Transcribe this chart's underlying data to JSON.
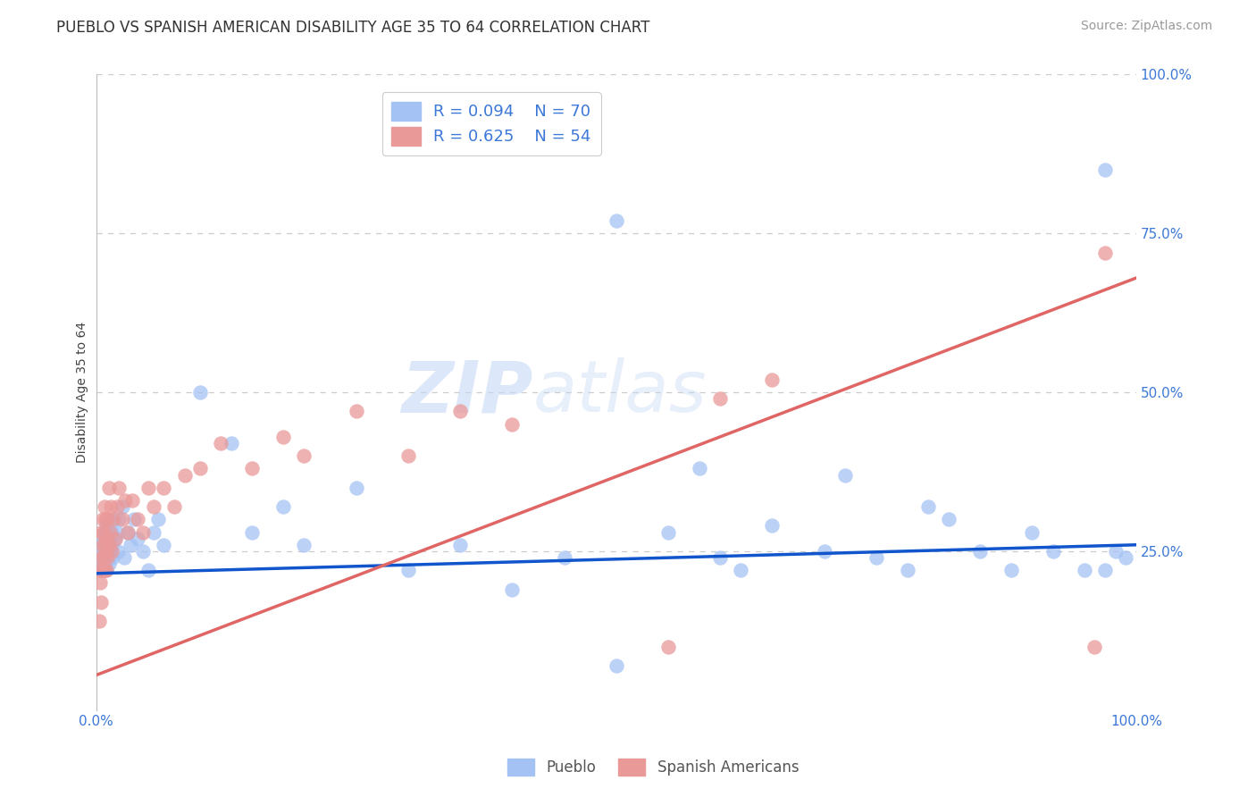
{
  "title": "PUEBLO VS SPANISH AMERICAN DISABILITY AGE 35 TO 64 CORRELATION CHART",
  "source": "Source: ZipAtlas.com",
  "ylabel": "Disability Age 35 to 64",
  "xlim": [
    0.0,
    1.0
  ],
  "ylim": [
    0.0,
    1.0
  ],
  "ytick_right_labels": [
    "100.0%",
    "75.0%",
    "50.0%",
    "25.0%"
  ],
  "ytick_right_values": [
    1.0,
    0.75,
    0.5,
    0.25
  ],
  "xtick_labels": [
    "0.0%",
    "100.0%"
  ],
  "xtick_values": [
    0.0,
    1.0
  ],
  "pueblo_R": 0.094,
  "pueblo_N": 70,
  "spanish_R": 0.625,
  "spanish_N": 54,
  "pueblo_color": "#a4c2f4",
  "spanish_color": "#ea9999",
  "pueblo_line_color": "#1155cc",
  "spanish_line_color": "#e06666",
  "watermark_zip": "ZIP",
  "watermark_atlas": "atlas",
  "watermark_color": "#c9d9f5",
  "background_color": "#ffffff",
  "pueblo_x": [
    0.005,
    0.005,
    0.005,
    0.007,
    0.007,
    0.008,
    0.008,
    0.009,
    0.009,
    0.01,
    0.01,
    0.01,
    0.011,
    0.011,
    0.012,
    0.012,
    0.013,
    0.013,
    0.014,
    0.015,
    0.015,
    0.016,
    0.017,
    0.018,
    0.02,
    0.021,
    0.022,
    0.025,
    0.027,
    0.03,
    0.033,
    0.036,
    0.04,
    0.045,
    0.05,
    0.055,
    0.06,
    0.065,
    0.1,
    0.13,
    0.15,
    0.18,
    0.2,
    0.25,
    0.3,
    0.35,
    0.4,
    0.45,
    0.5,
    0.55,
    0.58,
    0.6,
    0.62,
    0.65,
    0.7,
    0.72,
    0.75,
    0.78,
    0.8,
    0.82,
    0.85,
    0.88,
    0.9,
    0.92,
    0.95,
    0.97,
    0.98,
    0.99,
    0.5,
    0.97
  ],
  "pueblo_y": [
    0.22,
    0.24,
    0.26,
    0.23,
    0.27,
    0.25,
    0.28,
    0.24,
    0.26,
    0.22,
    0.27,
    0.29,
    0.25,
    0.28,
    0.23,
    0.26,
    0.24,
    0.27,
    0.25,
    0.26,
    0.28,
    0.24,
    0.3,
    0.27,
    0.28,
    0.25,
    0.3,
    0.32,
    0.24,
    0.28,
    0.26,
    0.3,
    0.27,
    0.25,
    0.22,
    0.28,
    0.3,
    0.26,
    0.5,
    0.42,
    0.28,
    0.32,
    0.26,
    0.35,
    0.22,
    0.26,
    0.19,
    0.24,
    0.07,
    0.28,
    0.38,
    0.24,
    0.22,
    0.29,
    0.25,
    0.37,
    0.24,
    0.22,
    0.32,
    0.3,
    0.25,
    0.22,
    0.28,
    0.25,
    0.22,
    0.22,
    0.25,
    0.24,
    0.77,
    0.85
  ],
  "spanish_x": [
    0.003,
    0.004,
    0.004,
    0.005,
    0.005,
    0.005,
    0.006,
    0.006,
    0.006,
    0.007,
    0.007,
    0.008,
    0.008,
    0.008,
    0.009,
    0.009,
    0.01,
    0.01,
    0.011,
    0.011,
    0.012,
    0.012,
    0.013,
    0.014,
    0.015,
    0.016,
    0.018,
    0.02,
    0.022,
    0.025,
    0.028,
    0.03,
    0.035,
    0.04,
    0.045,
    0.05,
    0.055,
    0.065,
    0.075,
    0.085,
    0.1,
    0.12,
    0.15,
    0.18,
    0.2,
    0.25,
    0.3,
    0.35,
    0.4,
    0.55,
    0.6,
    0.65,
    0.96,
    0.97
  ],
  "spanish_y": [
    0.14,
    0.2,
    0.22,
    0.17,
    0.24,
    0.28,
    0.22,
    0.26,
    0.3,
    0.24,
    0.28,
    0.22,
    0.26,
    0.32,
    0.25,
    0.3,
    0.22,
    0.27,
    0.24,
    0.3,
    0.26,
    0.35,
    0.28,
    0.32,
    0.25,
    0.3,
    0.27,
    0.32,
    0.35,
    0.3,
    0.33,
    0.28,
    0.33,
    0.3,
    0.28,
    0.35,
    0.32,
    0.35,
    0.32,
    0.37,
    0.38,
    0.42,
    0.38,
    0.43,
    0.4,
    0.47,
    0.4,
    0.47,
    0.45,
    0.1,
    0.49,
    0.52,
    0.1,
    0.72
  ],
  "title_fontsize": 12,
  "axis_label_fontsize": 10,
  "tick_fontsize": 11,
  "legend_fontsize": 13,
  "source_fontsize": 10
}
